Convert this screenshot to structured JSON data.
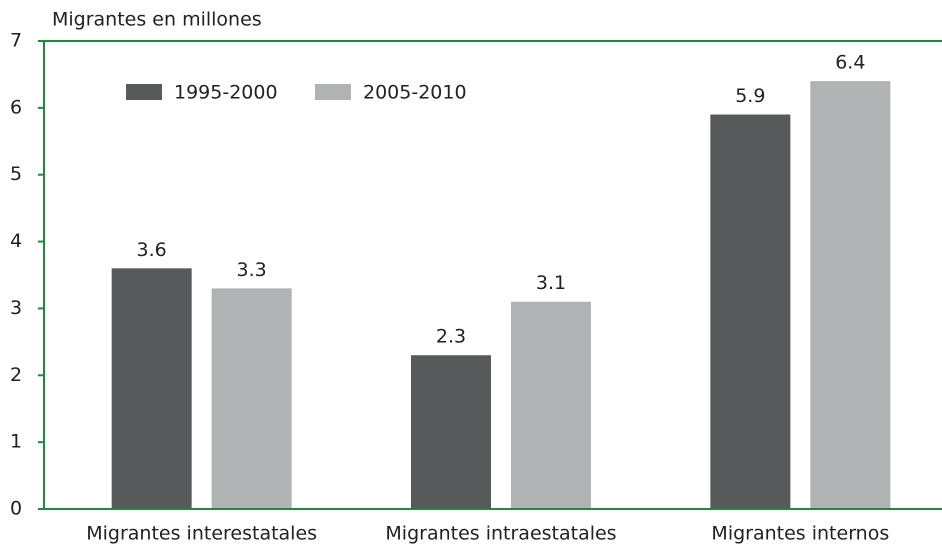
{
  "chart_data": {
    "type": "bar",
    "y_axis_label": "Migrantes en millones",
    "categories": [
      "Migrantes interestatales",
      "Migrantes intraestatales",
      "Migrantes internos"
    ],
    "series": [
      {
        "name": "1995-2000",
        "color": "#58595b",
        "values": [
          3.6,
          2.3,
          5.9
        ]
      },
      {
        "name": "2005-2010",
        "color": "#b1b2b4",
        "values": [
          3.3,
          3.1,
          6.4
        ]
      }
    ],
    "ylim": [
      0,
      7
    ],
    "yticks": [
      0,
      1,
      2,
      3,
      4,
      5,
      6,
      7
    ],
    "axis_color": "#1f8a3c",
    "legend": "top-left"
  }
}
